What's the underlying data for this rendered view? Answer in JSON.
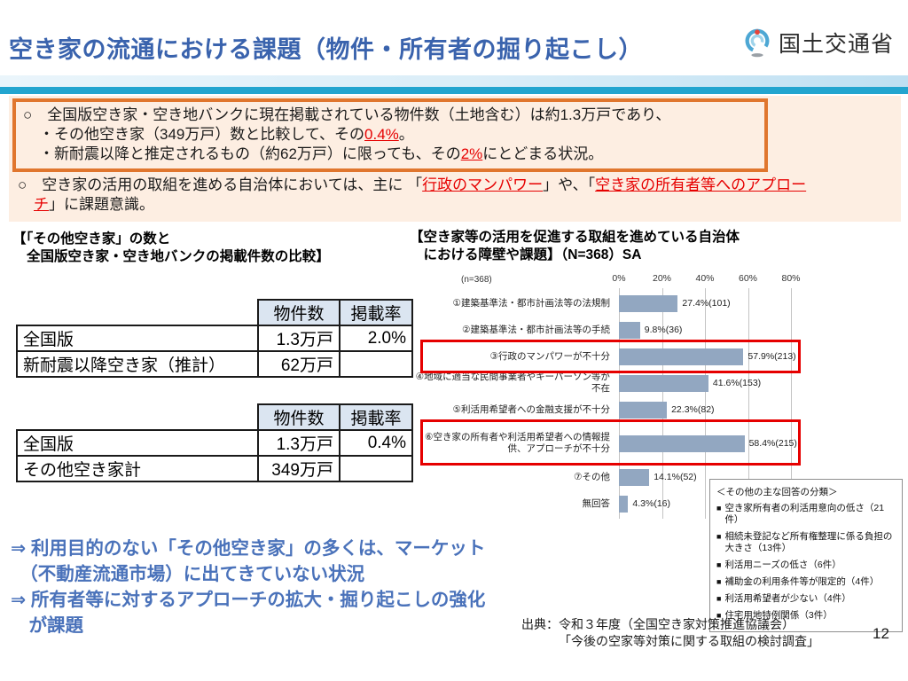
{
  "header": {
    "title": "空き家の流通における課題（物件・所有者の掘り起こし）",
    "ministry": "国土交通省"
  },
  "intro": {
    "line1": "○　全国版空き家・空き地バンクに現在掲載されている物件数（土地含む）は約1.3万戸であり、",
    "line2_pre": "・その他空き家（349万戸）数と比較して、その",
    "line2_red": "0.4%",
    "line2_post": "。",
    "line3_pre": "・新耐震以降と推定されるもの（約62万戸）に限っても、その",
    "line3_red": "2%",
    "line3_post": "にとどまる状況。",
    "line4_pre": "○　空き家の活用の取組を進める自治体においては、主に 「",
    "line4_red1": "行政のマンパワー",
    "line4_mid": "」や、「",
    "line4_red2": "空き家の所有者等へのアプロー",
    "line5_red": "チ",
    "line5_post": "」に課題意識。"
  },
  "left_heading": {
    "line1": "【「その他空き家」の数と",
    "line2": "全国版空き家・空き地バンクの掲載件数の比較】"
  },
  "table1": {
    "headers": [
      "物件数",
      "掲載率"
    ],
    "rows": [
      {
        "name": "全国版",
        "count": "1.3万戸",
        "rate": "2.0%"
      },
      {
        "name": "新耐震以降空き家（推計）",
        "count": "62万戸",
        "rate": ""
      }
    ]
  },
  "table2": {
    "headers": [
      "物件数",
      "掲載率"
    ],
    "rows": [
      {
        "name": "全国版",
        "count": "1.3万戸",
        "rate": "0.4%"
      },
      {
        "name": "その他空き家計",
        "count": "349万戸",
        "rate": ""
      }
    ]
  },
  "conclusion": {
    "line1": "⇒ 利用目的のない「その他空き家」の多くは、マーケット",
    "line2": "　（不動産流通市場）に出てきていない状況",
    "line3": "⇒ 所有者等に対するアプローチの拡大・掘り起こしの強化",
    "line4": "　が課題"
  },
  "chart_heading": {
    "line1": "【空き家等の活用を促進する取組を進めている自治体",
    "line2": "　における障壁や課題】（N=368）SA"
  },
  "chart_data": {
    "type": "bar",
    "orientation": "horizontal",
    "title": "空き家等の活用を促進する取組を進めている自治体における障壁や課題（N=368）SA",
    "n_label": "(n=368)",
    "categories": [
      "①建築基準法・都市計画法等の法規制",
      "②建築基準法・都市計画法等の手続",
      "③行政のマンパワーが不十分",
      "④地域に適当な民間事業者やキーパーソン等が不在",
      "⑤利活用希望者への金融支援が不十分",
      "⑥空き家の所有者や利活用希望者への情報提供、アプローチが不十分",
      "⑦その他",
      "無回答"
    ],
    "values": [
      27.4,
      9.8,
      57.9,
      41.6,
      22.3,
      58.4,
      14.1,
      4.3
    ],
    "counts": [
      101,
      36,
      213,
      153,
      82,
      215,
      52,
      16
    ],
    "value_labels": [
      "27.4%(101)",
      "9.8%(36)",
      "57.9%(213)",
      "41.6%(153)",
      "22.3%(82)",
      "58.4%(215)",
      "14.1%(52)",
      "4.3%(16)"
    ],
    "ticks": [
      "0%",
      "20%",
      "40%",
      "60%",
      "80%"
    ],
    "xlim": [
      0,
      80
    ],
    "grid": true,
    "highlighted_indices": [
      2,
      5
    ],
    "bar_color": "#92a7c1",
    "highlight_box_color": "#e60000"
  },
  "legend": {
    "title": "＜その他の主な回答の分類＞",
    "items": [
      "空き家所有者の利活用意向の低さ（21件）",
      "相続未登記など所有権整理に係る負担の大きさ（13件）",
      "利活用ニーズの低さ（6件）",
      "補助金の利用条件等が限定的（4件）",
      "利活用希望者が少ない（4件）",
      "住宅用地特例関係（3件）"
    ]
  },
  "footer": {
    "source_line1": "出典：令和３年度（全国空き家対策推進協議会）",
    "source_line2": "「今後の空家等対策に関する取組の検討調査」",
    "page_number": "12"
  },
  "colors": {
    "title_blue": "#3a63ad",
    "accent_cyan": "#23a5cf",
    "orange_border": "#e0762e",
    "intro_background": "#fdeee2",
    "red_accent": "#e60000",
    "table_header_bg": "#dbe5f1",
    "conclusion_blue": "#4a72ba",
    "bar_blue": "#92a7c1"
  }
}
